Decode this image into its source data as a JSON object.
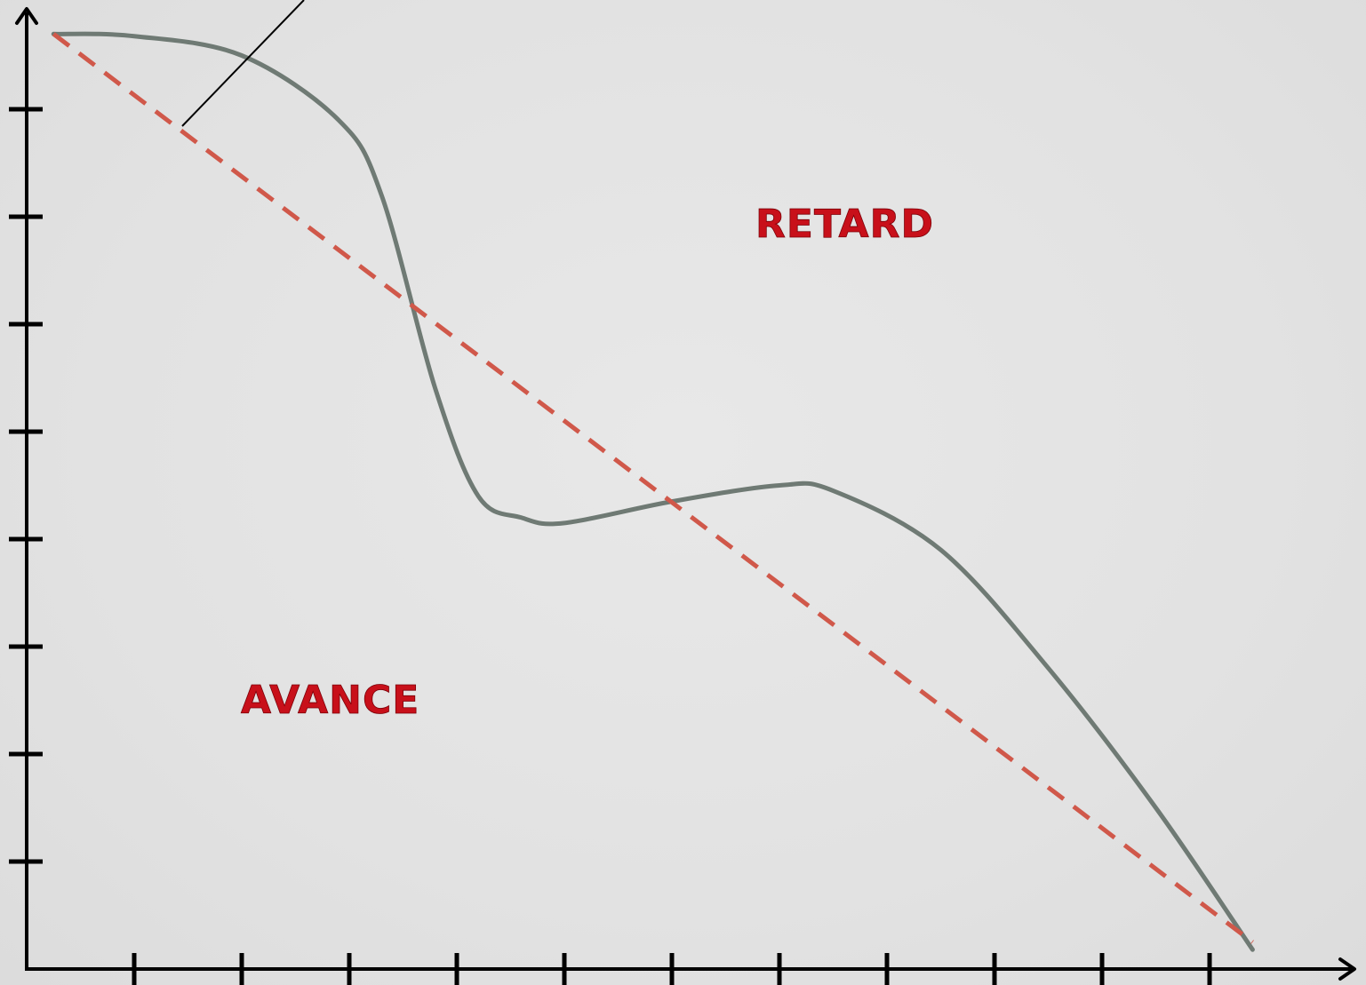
{
  "chart_data": {
    "type": "line",
    "title": "",
    "xlabel": "",
    "ylabel": "",
    "x_tick_count": 11,
    "y_tick_count": 8,
    "xlim": [
      0,
      11.6
    ],
    "ylim": [
      0,
      8.7
    ],
    "grid": false,
    "legend": "none",
    "series": [
      {
        "style": "solid",
        "color": "#6f7a74",
        "x": [
          0.25,
          1.0,
          2.0,
          2.9,
          3.3,
          3.8,
          4.2,
          4.6,
          5.0,
          6.0,
          7.0,
          7.5,
          8.5,
          9.5,
          10.5,
          11.4
        ],
        "y": [
          8.7,
          8.68,
          8.5,
          7.9,
          7.2,
          5.4,
          4.4,
          4.2,
          4.15,
          4.35,
          4.5,
          4.45,
          3.9,
          2.8,
          1.5,
          0.18
        ]
      },
      {
        "style": "dashed",
        "color": "#d0584a",
        "x": [
          0.25,
          11.4
        ],
        "y": [
          8.7,
          0.25
        ]
      }
    ],
    "annotations": [
      {
        "text": "RETARD",
        "x": 7.7,
        "y": 6.9
      },
      {
        "text": "AVANCE",
        "x": 2.9,
        "y": 2.5
      }
    ],
    "colors": {
      "axis": "#000000",
      "label": "#c8101a",
      "background": "#e3e3e3"
    }
  }
}
